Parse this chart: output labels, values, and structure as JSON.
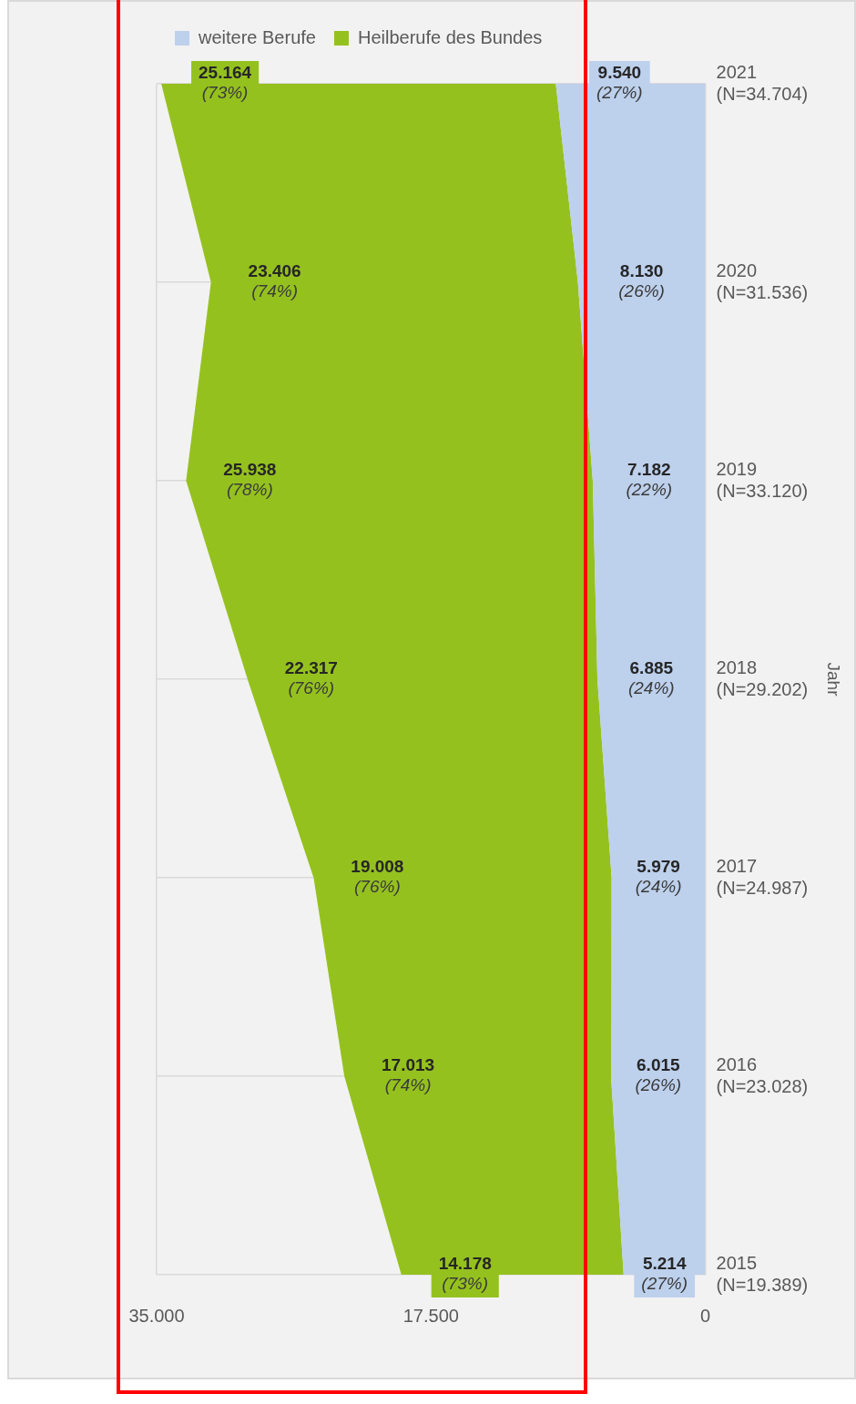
{
  "chart_data": {
    "type": "area",
    "stacked": true,
    "ylabel": "Jahr",
    "categories": [
      "2021\n(N=34.704)",
      "2020\n(N=31.536)",
      "2019\n(N=33.120)",
      "2018\n(N=29.202)",
      "2017\n(N=24.987)",
      "2016\n(N=23.028)",
      "2015\n(N=19.389)"
    ],
    "series": [
      {
        "name": "weitere Berufe",
        "color": "#bdd0ec",
        "values": [
          9540,
          8130,
          7182,
          6885,
          5979,
          6015,
          5214
        ],
        "value_labels": [
          "9.540\n(27%)",
          "8.130\n(26%)",
          "7.182\n(22%)",
          "6.885\n(24%)",
          "5.979\n(24%)",
          "6.015\n(26%)",
          "5.214\n(27%)"
        ]
      },
      {
        "name": "Heilberufe des Bundes",
        "color": "#95c11f",
        "values": [
          25164,
          23406,
          25938,
          22317,
          19008,
          17013,
          14178
        ],
        "value_labels": [
          "25.164\n(73%)",
          "23.406\n(74%)",
          "25.938\n(78%)",
          "22.317\n(76%)",
          "19.008\n(76%)",
          "17.013\n(74%)",
          "14.178\n(73%)"
        ]
      }
    ],
    "orientation": "horizontal",
    "xlim": [
      35000,
      0
    ],
    "xticks": [
      {
        "value": 0,
        "label": "0"
      },
      {
        "value": 17500,
        "label": "17.500"
      },
      {
        "value": 35000,
        "label": "35.000"
      }
    ],
    "grid": true,
    "legend": "top"
  }
}
